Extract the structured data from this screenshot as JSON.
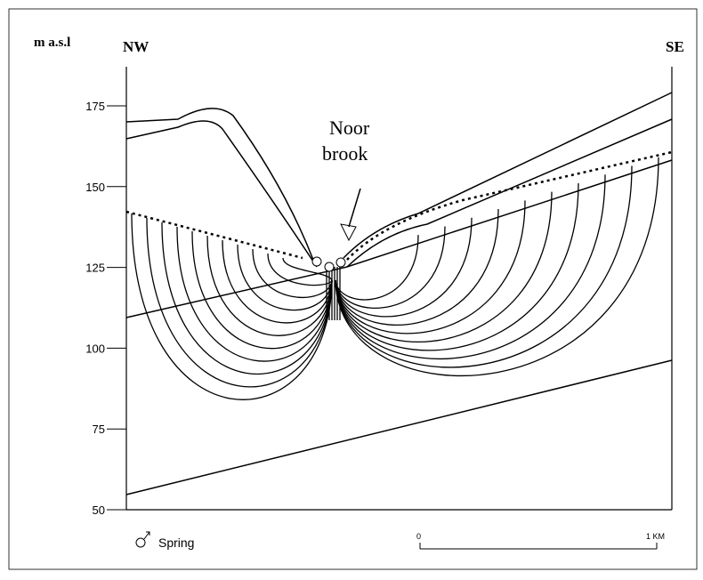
{
  "header": {
    "y_axis_label": "m a.s.l",
    "left_label": "NW",
    "right_label": "SE"
  },
  "annotation": {
    "lines": [
      "Noor",
      "brook"
    ]
  },
  "y_axis": {
    "ticks": [
      175,
      150,
      125,
      100,
      75,
      50
    ]
  },
  "legend": {
    "label": "Spring"
  },
  "scale_bar": {
    "start": "0",
    "end": "1 KM"
  }
}
